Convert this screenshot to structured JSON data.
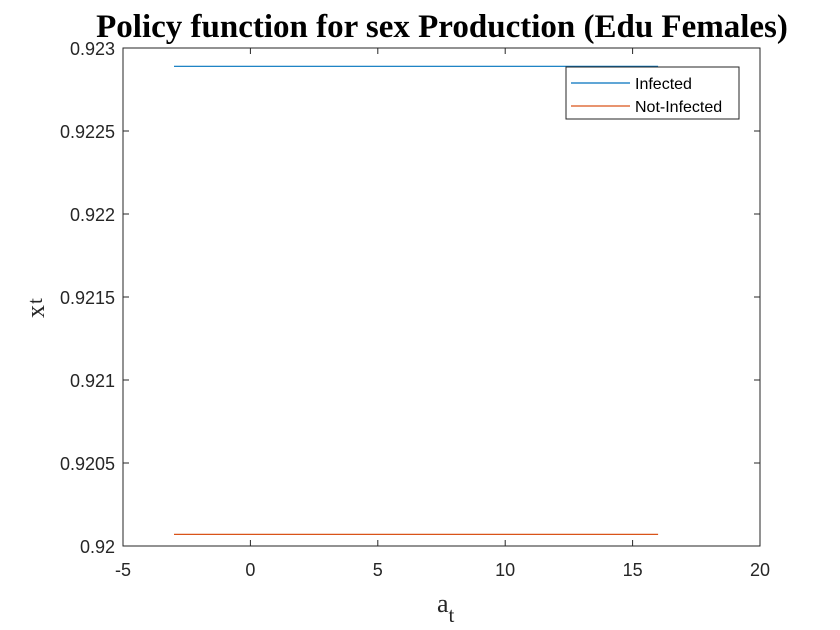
{
  "chart_data": {
    "type": "line",
    "title": "Policy function for sex Production (Edu Females)",
    "xlabel": {
      "main": "a",
      "subscript": "t"
    },
    "ylabel": {
      "main": "x",
      "subscript": "t"
    },
    "xlim": [
      -5,
      20
    ],
    "ylim": [
      0.92,
      0.923
    ],
    "xticks": [
      -5,
      0,
      5,
      10,
      15,
      20
    ],
    "xtick_labels": [
      "-5",
      "0",
      "5",
      "10",
      "15",
      "20"
    ],
    "yticks": [
      0.92,
      0.9205,
      0.921,
      0.9215,
      0.922,
      0.9225,
      0.923
    ],
    "ytick_labels": [
      "0.92",
      "0.9205",
      "0.921",
      "0.9215",
      "0.922",
      "0.9225",
      "0.923"
    ],
    "grid": false,
    "legend_position": "top-right",
    "series": [
      {
        "name": "Infected",
        "color": "#0072BD",
        "x": [
          -3,
          16
        ],
        "y": [
          0.92289,
          0.92289
        ]
      },
      {
        "name": "Not-Infected",
        "color": "#D95319",
        "x": [
          -3,
          16
        ],
        "y": [
          0.92007,
          0.92007
        ]
      }
    ]
  }
}
